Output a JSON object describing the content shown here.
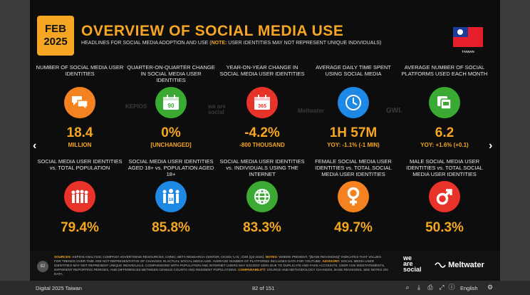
{
  "slide": {
    "date_month": "FEB",
    "date_year": "2025",
    "title": "OVERVIEW OF SOCIAL MEDIA USE",
    "subtitle_pre": "HEADLINES FOR SOCIAL MEDIA ADOPTION AND USE (",
    "subtitle_note": "NOTE:",
    "subtitle_post": " USER IDENTITIES MAY NOT REPRESENT UNIQUE INDIVIDUALS)",
    "country_label": "TAIWAN",
    "row1": [
      {
        "label": "NUMBER OF SOCIAL MEDIA USER IDENTITIES",
        "value": "18.4",
        "sub": "MILLION",
        "icon": "chat-bubbles-icon",
        "color": "#f58220"
      },
      {
        "label": "QUARTER-ON-QUARTER CHANGE IN SOCIAL MEDIA USER IDENTITIES",
        "value": "0%",
        "sub": "[UNCHANGED]",
        "icon": "calendar-90-icon",
        "color": "#3aaa35",
        "icon_text": "90"
      },
      {
        "label": "YEAR-ON-YEAR CHANGE IN SOCIAL MEDIA USER IDENTITIES",
        "value": "-4.2%",
        "sub": "-800 THOUSAND",
        "icon": "calendar-365-icon",
        "color": "#e8332a",
        "icon_text": "365"
      },
      {
        "label": "AVERAGE DAILY TIME SPENT USING SOCIAL MEDIA",
        "value": "1H 57M",
        "sub": "YOY: -1.1% (-1 MIN)",
        "icon": "clock-icon",
        "color": "#1e88e5"
      },
      {
        "label": "AVERAGE NUMBER OF SOCIAL PLATFORMS USED EACH MONTH",
        "value": "6.2",
        "sub": "YOY: +1.6% (+0.1)",
        "icon": "social-cards-icon",
        "color": "#3aaa35"
      }
    ],
    "row2": [
      {
        "label": "SOCIAL MEDIA USER IDENTITIES vs. TOTAL POPULATION",
        "value": "79.4%",
        "icon": "crowd-icon",
        "color": "#e8332a"
      },
      {
        "label": "SOCIAL MEDIA USER IDENTITIES AGED 18+ vs. POPULATION AGED 18+",
        "value": "85.8%",
        "icon": "adults-18-icon",
        "color": "#1e88e5",
        "icon_text": "18"
      },
      {
        "label": "SOCIAL MEDIA USER IDENTITIES vs. INDIVIDUALS USING THE INTERNET",
        "value": "83.3%",
        "icon": "globe-icon",
        "color": "#3aaa35"
      },
      {
        "label": "FEMALE SOCIAL MEDIA USER IDENTITIES vs. TOTAL SOCIAL MEDIA USER IDENTITIES",
        "value": "49.7%",
        "icon": "female-symbol-icon",
        "color": "#f58220"
      },
      {
        "label": "MALE SOCIAL MEDIA USER IDENTITIES vs. TOTAL SOCIAL MEDIA USER IDENTITIES",
        "value": "50.3%",
        "icon": "male-symbol-icon",
        "color": "#e8332a"
      }
    ],
    "watermarks": [
      "KEPIOS",
      "we are social",
      "Meltwater",
      "GWI."
    ],
    "footer": {
      "page_number": "82",
      "sources_label": "SOURCES:",
      "sources_text": " KEPIOS ANALYSIS; COMPANY ADVERTISING RESOURCES; CNNIC; BETA RESEARCH CENTER; OCSDI; U.N.; GWI (Q3 2024). ",
      "notes_label": "NOTES:",
      "notes_text": " WHERE PRESENT, \"[BASE REVISIONS]\" INDICATES THAT VALUES FOR TRENDS OVER TIME ARE NOT REPRESENTATIVE OF CHANGES IN ACTUAL SOCIAL MEDIA USE. AVERAGE NUMBER OF PLATFORMS INCLUDES DATA FOR YOUTUBE. ",
      "advisory_label": "ADVISORY:",
      "advisory_text": " SOCIAL MEDIA USER IDENTITIES MAY NOT REPRESENT UNIQUE INDIVIDUALS. COMPARISONS WITH POPULATION AND INTERNET USERS MAY EXCEED 100% DUE TO DUPLICATE AND FAKE ACCOUNTS, USER AGE MISSTATEMENTS, DIFFERENT REPORTING PERIODS, AND DIFFERENCES BETWEEN CENSUS COUNTS AND RESIDENT POPULATIONS. ",
      "comparability_label": "COMPARABILITY:",
      "comparability_text": " SOURCE AND METHODOLOGY CHANGES, BASE REVISIONS. SEE NOTES ON DATA.",
      "brand1_line1": "we",
      "brand1_line2": "are",
      "brand1_line3": "social",
      "brand2": "Meltwater"
    }
  },
  "viewer": {
    "doc_title": "Digital 2025 Taiwan",
    "page_indicator": "82 of 151",
    "language": "English",
    "prev_arrow": "‹",
    "next_arrow": "›"
  }
}
